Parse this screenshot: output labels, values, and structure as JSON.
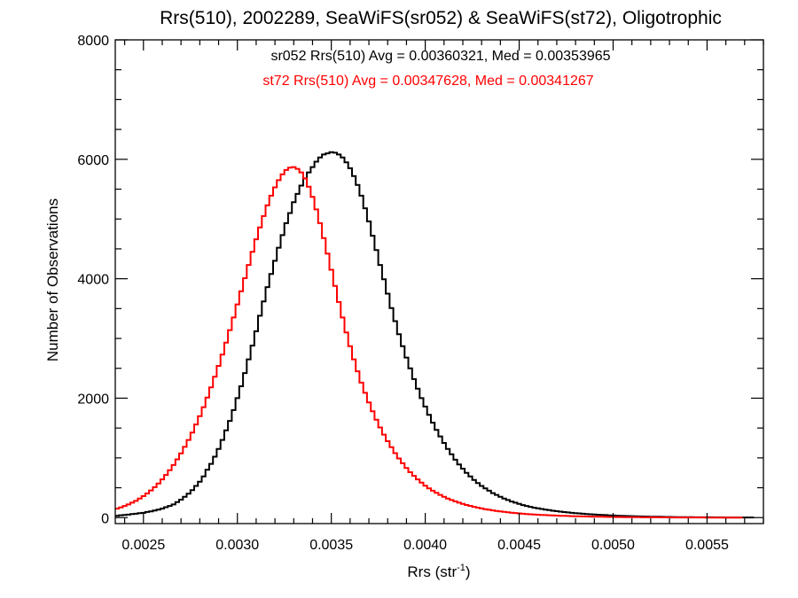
{
  "chart_data": {
    "type": "histogram",
    "title": "Rrs(510), 2002289, SeaWiFS(sr052) & SeaWiFS(st72), Oligotrophic",
    "xlabel_base": "Rrs (str",
    "xlabel_sup": "-1",
    "xlabel_tail": ")",
    "ylabel": "Number of Observations",
    "xlim": [
      0.00235,
      0.0058
    ],
    "ylim": [
      -100,
      8000
    ],
    "xticks": [
      {
        "v": 0.0025,
        "label": "0.0025"
      },
      {
        "v": 0.003,
        "label": "0.0030"
      },
      {
        "v": 0.0035,
        "label": "0.0035"
      },
      {
        "v": 0.004,
        "label": "0.0040"
      },
      {
        "v": 0.0045,
        "label": "0.0045"
      },
      {
        "v": 0.005,
        "label": "0.0050"
      },
      {
        "v": 0.0055,
        "label": "0.0055"
      }
    ],
    "yticks": [
      {
        "v": 0,
        "label": "0"
      },
      {
        "v": 2000,
        "label": "2000"
      },
      {
        "v": 4000,
        "label": "4000"
      },
      {
        "v": 6000,
        "label": "6000"
      },
      {
        "v": 8000,
        "label": "8000"
      }
    ],
    "bin_width": 2e-05,
    "series": [
      {
        "name": "sr052",
        "color": "#000000",
        "x_start": 0.00235,
        "values": [
          30,
          40,
          45,
          50,
          60,
          65,
          75,
          80,
          95,
          105,
          120,
          135,
          150,
          175,
          195,
          220,
          260,
          300,
          350,
          400,
          460,
          530,
          600,
          690,
          800,
          900,
          1020,
          1150,
          1300,
          1460,
          1620,
          1800,
          2000,
          2200,
          2420,
          2650,
          2880,
          3120,
          3380,
          3620,
          3860,
          4080,
          4300,
          4520,
          4730,
          4930,
          5100,
          5280,
          5420,
          5560,
          5680,
          5780,
          5870,
          5960,
          6030,
          6080,
          6100,
          6120,
          6110,
          6080,
          6030,
          5950,
          5850,
          5720,
          5570,
          5390,
          5180,
          4960,
          4720,
          4480,
          4230,
          3990,
          3750,
          3510,
          3290,
          3070,
          2870,
          2680,
          2500,
          2320,
          2160,
          2000,
          1860,
          1720,
          1590,
          1470,
          1360,
          1250,
          1150,
          1060,
          970,
          890,
          820,
          750,
          690,
          630,
          580,
          530,
          490,
          450,
          410,
          380,
          350,
          320,
          295,
          270,
          250,
          230,
          210,
          195,
          180,
          165,
          155,
          145,
          135,
          125,
          115,
          108,
          100,
          93,
          87,
          80,
          75,
          70,
          65,
          60,
          56,
          52,
          48,
          45,
          42,
          38,
          35,
          32,
          30,
          28,
          26,
          24,
          22,
          20,
          18,
          17,
          16,
          15,
          14,
          13,
          12,
          11,
          10,
          9,
          8,
          8,
          7,
          7,
          6,
          6,
          5,
          5,
          5,
          4,
          4,
          4,
          3,
          3,
          3,
          3,
          2,
          2,
          2,
          2
        ]
      },
      {
        "name": "st72",
        "color": "#ff0000",
        "x_start": 0.00235,
        "values": [
          150,
          170,
          195,
          220,
          250,
          280,
          320,
          360,
          405,
          455,
          510,
          570,
          640,
          715,
          795,
          880,
          975,
          1075,
          1185,
          1300,
          1425,
          1560,
          1700,
          1850,
          2010,
          2180,
          2360,
          2540,
          2730,
          2930,
          3140,
          3350,
          3570,
          3790,
          4010,
          4230,
          4450,
          4660,
          4860,
          5050,
          5230,
          5390,
          5530,
          5650,
          5750,
          5820,
          5860,
          5870,
          5840,
          5780,
          5680,
          5540,
          5370,
          5160,
          4930,
          4680,
          4420,
          4150,
          3880,
          3610,
          3350,
          3100,
          2870,
          2650,
          2450,
          2260,
          2090,
          1930,
          1780,
          1640,
          1510,
          1390,
          1280,
          1180,
          1080,
          990,
          910,
          830,
          760,
          700,
          640,
          585,
          535,
          490,
          450,
          415,
          380,
          350,
          320,
          295,
          272,
          250,
          230,
          212,
          196,
          181,
          167,
          154,
          142,
          131,
          121,
          112,
          104,
          96,
          89,
          82,
          76,
          70,
          65,
          60,
          56,
          52,
          48,
          45,
          42,
          39,
          36,
          33,
          31,
          29,
          27,
          25,
          23,
          21,
          20,
          18,
          17,
          16,
          15,
          14,
          13,
          12,
          11,
          10,
          10,
          9,
          8,
          8,
          7,
          7,
          6,
          6,
          5,
          5,
          5,
          4,
          4,
          4,
          3,
          3,
          3,
          3,
          2,
          2,
          2,
          2,
          2,
          1,
          1,
          1,
          1,
          1,
          1,
          1,
          1,
          1,
          1
        ]
      }
    ],
    "annotations": [
      {
        "text": "sr052 Rrs(510) Avg = 0.00360321, Med = 0.00353965",
        "color": "#000000"
      },
      {
        "text": "st72 Rrs(510) Avg = 0.00347628, Med = 0.00341267",
        "color": "#ff0000"
      }
    ]
  }
}
